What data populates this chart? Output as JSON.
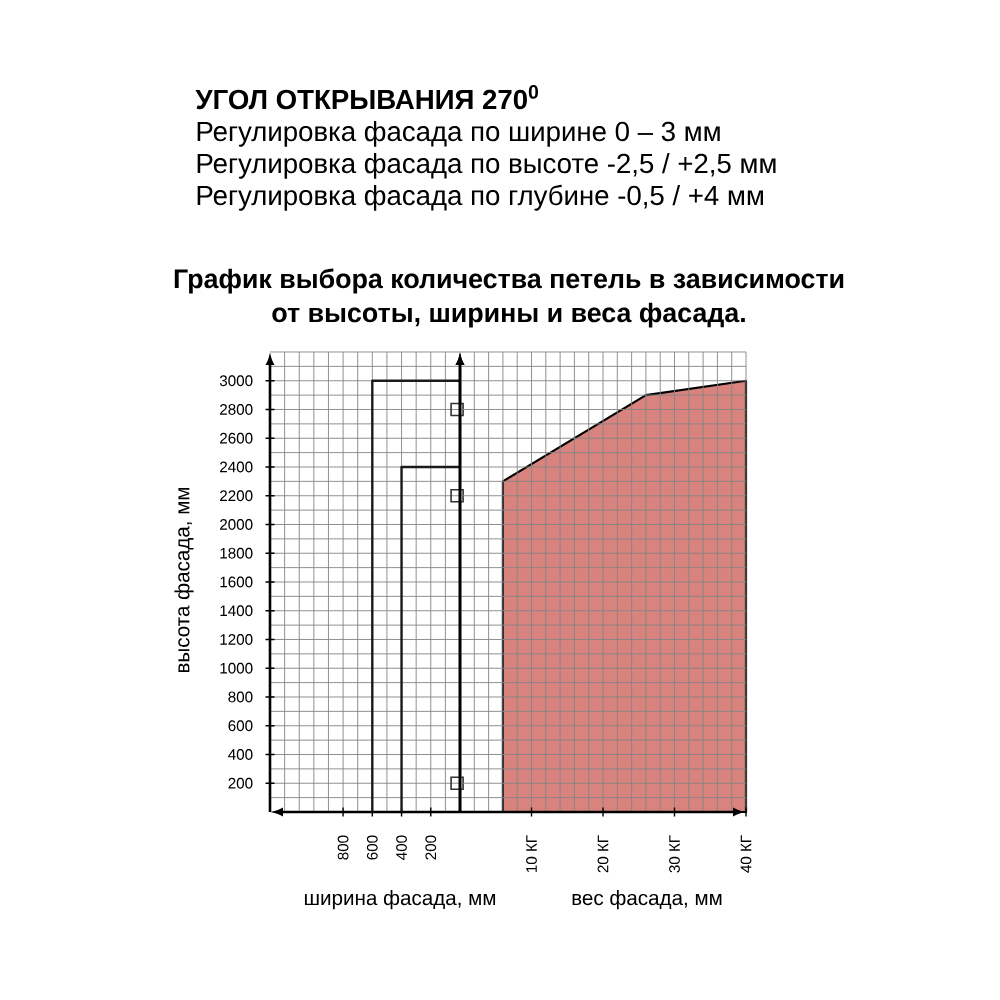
{
  "chart_data": [
    {
      "type": "line",
      "title": "График выбора количества петель в зависимости от высоты, ширины и веса фасада.",
      "annotations": [
        "УГОЛ ОТКРЫВАНИЯ 270$^{0}$",
        "Регулировка фасада по ширине 0 – 3 мм",
        "Регулировка фасада по высоте -2,5 / +2,5 мм",
        "Регулировка фасада по глубине -0,5 / +4 мм"
      ],
      "xlabel": "ширина фасада, мм",
      "ylabel": "высота фасада, мм",
      "xlim": [
        1300,
        0
      ],
      "xticks": [
        {
          "value": 1200,
          "label": null
        },
        {
          "value": 1100,
          "label": null
        },
        {
          "value": 1000,
          "label": null
        },
        {
          "value": 900,
          "label": null
        },
        800,
        {
          "value": 700,
          "label": null
        },
        600,
        {
          "value": 500,
          "label": null
        },
        400,
        {
          "value": 300,
          "label": null
        },
        200,
        {
          "value": 100,
          "label": null
        }
      ],
      "ylim": [
        0,
        3200
      ],
      "yticks": [
        {
          "value": 100,
          "label": null
        },
        200,
        {
          "value": 300,
          "label": null
        },
        400,
        {
          "value": 500,
          "label": null
        },
        600,
        {
          "value": 700,
          "label": null
        },
        800,
        {
          "value": 900,
          "label": null
        },
        1000,
        {
          "value": 1100,
          "label": null
        },
        1200,
        {
          "value": 1300,
          "label": null
        },
        1400,
        {
          "value": 1500,
          "label": null
        },
        1600,
        {
          "value": 1700,
          "label": null
        },
        1800,
        {
          "value": 1900,
          "label": null
        },
        2000,
        {
          "value": 2100,
          "label": null
        },
        2200,
        {
          "value": 2300,
          "label": null
        },
        2400,
        {
          "value": 2500,
          "label": null
        },
        2600,
        {
          "value": 2700,
          "label": null
        },
        2800,
        {
          "value": 2900,
          "label": null
        },
        3000,
        {
          "value": 3100,
          "label": null
        },
        {
          "value": 3200,
          "label": null
        }
      ],
      "grid": true,
      "series": [
        {
          "x": [
            600,
            600,
            0
          ],
          "values": [
            0,
            3000,
            3000
          ],
          "color": "#1a1a1a"
        },
        {
          "x": [
            400,
            400,
            0
          ],
          "values": [
            0,
            2400,
            2400
          ],
          "color": "#1a1a1a"
        },
        {
          "type": "scatter",
          "x": [
            20,
            20,
            20
          ],
          "values": [
            2800,
            2200,
            200
          ],
          "color": "#333333",
          "marker": "square"
        }
      ]
    },
    {
      "type": "area",
      "x": [
        6,
        26,
        40
      ],
      "values": [
        2300,
        2900,
        3000
      ],
      "color": "#d9837e",
      "xlabel": "вес фасада, мм",
      "xlim": [
        0,
        40
      ],
      "xticks": [
        {
          "value": 2,
          "label": null
        },
        {
          "value": 4,
          "label": null
        },
        {
          "value": 6,
          "label": null
        },
        {
          "value": 8,
          "label": null
        },
        {
          "value": 10,
          "label": "10 КГ"
        },
        {
          "value": 12,
          "label": null
        },
        {
          "value": 14,
          "label": null
        },
        {
          "value": 16,
          "label": null
        },
        {
          "value": 18,
          "label": null
        },
        {
          "value": 20,
          "label": "20 КГ"
        },
        {
          "value": 22,
          "label": null
        },
        {
          "value": 24,
          "label": null
        },
        {
          "value": 26,
          "label": null
        },
        {
          "value": 28,
          "label": null
        },
        {
          "value": 30,
          "label": "30 КГ"
        },
        {
          "value": 32,
          "label": null
        },
        {
          "value": 34,
          "label": null
        },
        {
          "value": 36,
          "label": null
        },
        {
          "value": 38,
          "label": null
        },
        {
          "value": 40,
          "label": "40 КГ"
        }
      ],
      "ylim": [
        0,
        3200
      ],
      "yticks": [
        {
          "value": 100,
          "label": null
        },
        200,
        {
          "value": 300,
          "label": null
        },
        400,
        {
          "value": 500,
          "label": null
        },
        600,
        {
          "value": 700,
          "label": null
        },
        800,
        {
          "value": 900,
          "label": null
        },
        1000,
        {
          "value": 1100,
          "label": null
        },
        1200,
        {
          "value": 1300,
          "label": null
        },
        1400,
        {
          "value": 1500,
          "label": null
        },
        1600,
        {
          "value": 1700,
          "label": null
        },
        1800,
        {
          "value": 1900,
          "label": null
        },
        2000,
        {
          "value": 2100,
          "label": null
        },
        2200,
        {
          "value": 2300,
          "label": null
        },
        2400,
        {
          "value": 2500,
          "label": null
        },
        2600,
        {
          "value": 2700,
          "label": null
        },
        2800,
        {
          "value": 2900,
          "label": null
        },
        3000,
        {
          "value": 3100,
          "label": null
        },
        {
          "value": 3200,
          "label": null
        }
      ],
      "tick_labels": "x",
      "grid": true
    }
  ]
}
